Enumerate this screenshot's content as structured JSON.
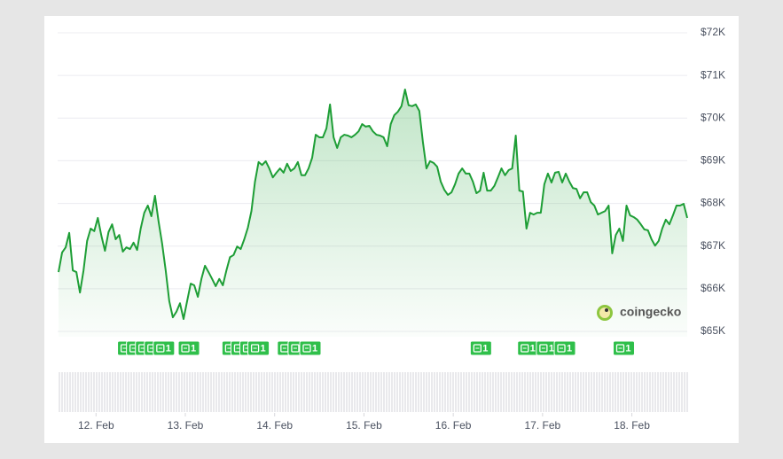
{
  "chart_data": {
    "type": "line",
    "color": "#1e9e36",
    "grid": true,
    "y_axis_side": "right",
    "watermark": "coingecko",
    "xlim": [
      11.58,
      18.62
    ],
    "xticks": [
      {
        "value": 12,
        "label": "12. Feb"
      },
      {
        "value": 13,
        "label": "13. Feb"
      },
      {
        "value": 14,
        "label": "14. Feb"
      },
      {
        "value": 15,
        "label": "15. Feb"
      },
      {
        "value": 16,
        "label": "16. Feb"
      },
      {
        "value": 17,
        "label": "17. Feb"
      },
      {
        "value": 18,
        "label": "18. Feb"
      }
    ],
    "ylim": [
      65000,
      72000
    ],
    "yticks": [
      {
        "value": 65000,
        "label": "$65K"
      },
      {
        "value": 66000,
        "label": "$66K"
      },
      {
        "value": 67000,
        "label": "$67K"
      },
      {
        "value": 68000,
        "label": "$68K"
      },
      {
        "value": 69000,
        "label": "$69K"
      },
      {
        "value": 70000,
        "label": "$70K"
      },
      {
        "value": 71000,
        "label": "$71K"
      },
      {
        "value": 72000,
        "label": "$72K"
      }
    ],
    "x": [
      11.58,
      11.62,
      11.66,
      11.7,
      11.74,
      11.78,
      11.82,
      11.86,
      11.9,
      11.94,
      11.98,
      12.02,
      12.06,
      12.1,
      12.14,
      12.18,
      12.22,
      12.26,
      12.3,
      12.34,
      12.38,
      12.42,
      12.46,
      12.5,
      12.54,
      12.58,
      12.62,
      12.66,
      12.7,
      12.74,
      12.78,
      12.82,
      12.86,
      12.9,
      12.94,
      12.98,
      13.02,
      13.06,
      13.1,
      13.14,
      13.18,
      13.22,
      13.26,
      13.3,
      13.34,
      13.38,
      13.42,
      13.46,
      13.5,
      13.54,
      13.58,
      13.62,
      13.66,
      13.7,
      13.74,
      13.78,
      13.82,
      13.86,
      13.9,
      13.94,
      13.98,
      14.02,
      14.06,
      14.1,
      14.14,
      14.18,
      14.22,
      14.26,
      14.3,
      14.34,
      14.38,
      14.42,
      14.46,
      14.5,
      14.54,
      14.58,
      14.62,
      14.66,
      14.7,
      14.74,
      14.78,
      14.82,
      14.86,
      14.9,
      14.94,
      14.98,
      15.02,
      15.06,
      15.1,
      15.14,
      15.18,
      15.22,
      15.26,
      15.3,
      15.34,
      15.38,
      15.42,
      15.46,
      15.5,
      15.54,
      15.58,
      15.62,
      15.66,
      15.7,
      15.74,
      15.78,
      15.82,
      15.86,
      15.9,
      15.94,
      15.98,
      16.02,
      16.06,
      16.1,
      16.14,
      16.18,
      16.22,
      16.26,
      16.3,
      16.34,
      16.38,
      16.42,
      16.46,
      16.5,
      16.54,
      16.58,
      16.62,
      16.66,
      16.7,
      16.74,
      16.78,
      16.82,
      16.86,
      16.9,
      16.94,
      16.98,
      17.02,
      17.06,
      17.1,
      17.14,
      17.18,
      17.22,
      17.26,
      17.3,
      17.34,
      17.38,
      17.42,
      17.46,
      17.5,
      17.54,
      17.58,
      17.62,
      17.66,
      17.7,
      17.74,
      17.78,
      17.82,
      17.86,
      17.9,
      17.94,
      17.98,
      18.02,
      18.06,
      18.1,
      18.14,
      18.18,
      18.22,
      18.26,
      18.3,
      18.34,
      18.38,
      18.42,
      18.46,
      18.5,
      18.54,
      18.58,
      18.62
    ],
    "values": [
      66390,
      66850,
      66970,
      67310,
      66430,
      66390,
      65910,
      66430,
      67120,
      67410,
      67350,
      67660,
      67240,
      66890,
      67330,
      67510,
      67160,
      67260,
      66870,
      66970,
      66930,
      67080,
      66910,
      67410,
      67780,
      67950,
      67700,
      68180,
      67580,
      67060,
      66430,
      65710,
      65330,
      65460,
      65660,
      65290,
      65710,
      66120,
      66080,
      65810,
      66230,
      66540,
      66390,
      66230,
      66060,
      66230,
      66080,
      66430,
      66740,
      66790,
      66990,
      66930,
      67160,
      67430,
      67820,
      68510,
      68970,
      68900,
      68990,
      68820,
      68610,
      68720,
      68820,
      68720,
      68930,
      68760,
      68820,
      68970,
      68660,
      68660,
      68820,
      69070,
      69610,
      69550,
      69550,
      69760,
      70320,
      69550,
      69300,
      69550,
      69610,
      69590,
      69550,
      69610,
      69690,
      69860,
      69800,
      69820,
      69690,
      69610,
      69590,
      69550,
      69340,
      69860,
      70070,
      70150,
      70280,
      70670,
      70300,
      70280,
      70320,
      70170,
      69440,
      68820,
      68990,
      68950,
      68860,
      68510,
      68320,
      68200,
      68260,
      68450,
      68700,
      68820,
      68700,
      68700,
      68510,
      68240,
      68300,
      68720,
      68300,
      68300,
      68410,
      68610,
      68820,
      68660,
      68780,
      68820,
      69590,
      68300,
      68280,
      67410,
      67780,
      67740,
      67780,
      67780,
      68450,
      68700,
      68490,
      68720,
      68740,
      68490,
      68700,
      68510,
      68360,
      68340,
      68120,
      68260,
      68260,
      68030,
      67950,
      67740,
      67780,
      67820,
      67950,
      66830,
      67260,
      67410,
      67120,
      67950,
      67720,
      67680,
      67620,
      67510,
      67390,
      67370,
      67160,
      67010,
      67120,
      67410,
      67620,
      67510,
      67720,
      67950,
      67950,
      67990,
      67660
    ],
    "event_markers": [
      {
        "x": 12.36,
        "label": "1"
      },
      {
        "x": 12.46,
        "label": "1"
      },
      {
        "x": 12.56,
        "label": "1"
      },
      {
        "x": 12.66,
        "label": "1"
      },
      {
        "x": 12.76,
        "label": "1"
      },
      {
        "x": 13.04,
        "label": "1"
      },
      {
        "x": 13.53,
        "label": "1"
      },
      {
        "x": 13.63,
        "label": "1"
      },
      {
        "x": 13.73,
        "label": "1"
      },
      {
        "x": 13.82,
        "label": "1"
      },
      {
        "x": 14.15,
        "label": "1"
      },
      {
        "x": 14.27,
        "label": "1"
      },
      {
        "x": 14.4,
        "label": "1"
      },
      {
        "x": 16.31,
        "label": "1"
      },
      {
        "x": 16.84,
        "label": "1"
      },
      {
        "x": 17.05,
        "label": "1"
      },
      {
        "x": 17.25,
        "label": "1"
      },
      {
        "x": 17.91,
        "label": "1"
      }
    ]
  }
}
